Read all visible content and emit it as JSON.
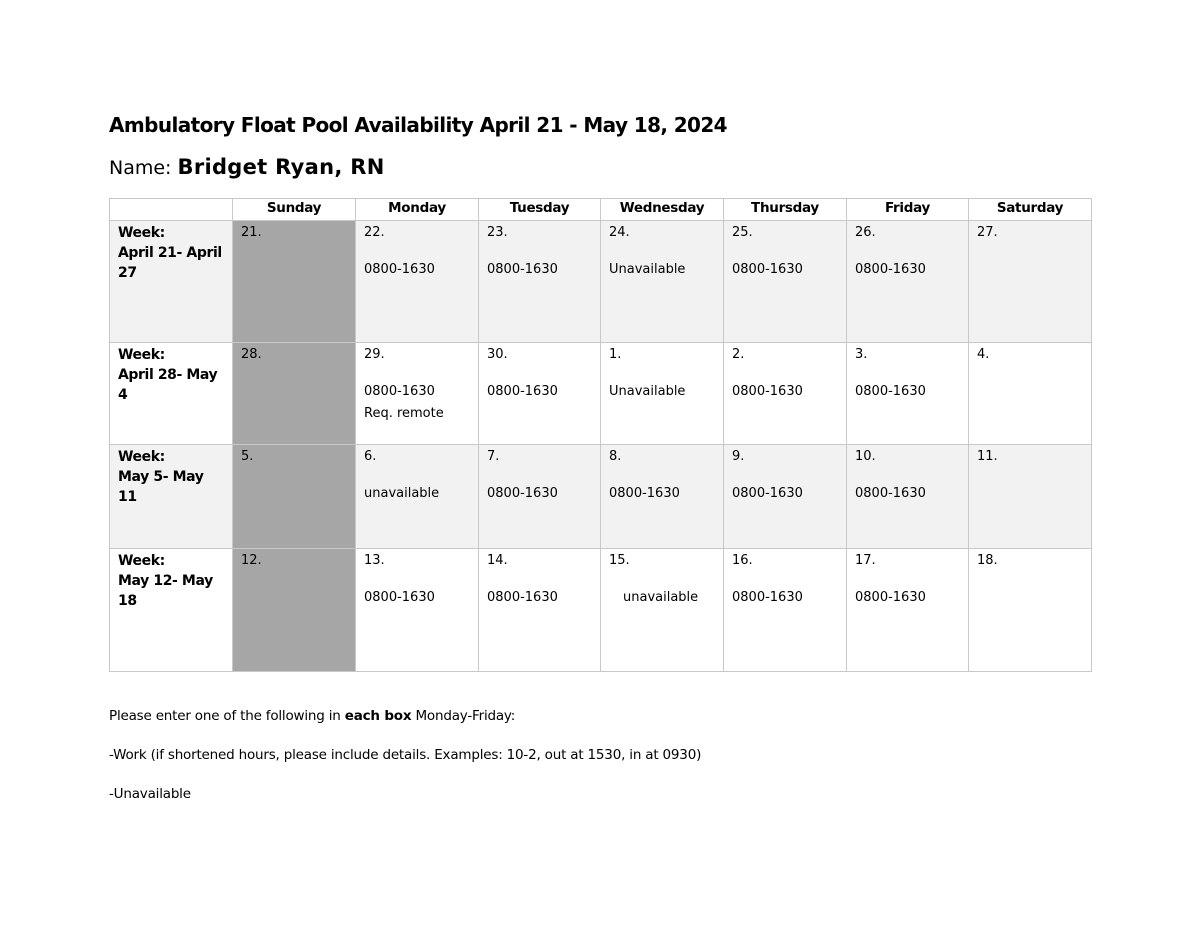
{
  "title": "Ambulatory Float Pool Availability April 21 - May 18, 2024",
  "name_label": "Name:",
  "name_value": "Bridget Ryan, RN",
  "colors": {
    "sunday_fill": "#a6a6a6",
    "shaded_row": "#f2f2f2",
    "border": "#c8c8c8"
  },
  "days": [
    "Sunday",
    "Monday",
    "Tuesday",
    "Wednesday",
    "Thursday",
    "Friday",
    "Saturday"
  ],
  "weeks": [
    {
      "label": "Week:\nApril 21- April 27",
      "cells": [
        {
          "num": "21.",
          "entry": ""
        },
        {
          "num": "22.",
          "entry": "0800-1630"
        },
        {
          "num": "23.",
          "entry": "0800-1630"
        },
        {
          "num": "24.",
          "entry": "Unavailable"
        },
        {
          "num": "25.",
          "entry": "0800-1630"
        },
        {
          "num": "26.",
          "entry": "0800-1630"
        },
        {
          "num": "27.",
          "entry": ""
        }
      ]
    },
    {
      "label": "Week:\nApril 28- May 4",
      "cells": [
        {
          "num": "28.",
          "entry": ""
        },
        {
          "num": "29.",
          "entry": "0800-1630\nReq. remote"
        },
        {
          "num": "30.",
          "entry": "0800-1630"
        },
        {
          "num": "1.",
          "entry": "Unavailable"
        },
        {
          "num": "2.",
          "entry": "0800-1630"
        },
        {
          "num": "3.",
          "entry": "0800-1630"
        },
        {
          "num": "4.",
          "entry": ""
        }
      ]
    },
    {
      "label": "Week:\nMay 5- May 11",
      "cells": [
        {
          "num": "5.",
          "entry": ""
        },
        {
          "num": "6.",
          "entry": "unavailable"
        },
        {
          "num": "7.",
          "entry": "0800-1630"
        },
        {
          "num": "8.",
          "entry": "0800-1630"
        },
        {
          "num": "9.",
          "entry": "0800-1630"
        },
        {
          "num": "10.",
          "entry": "0800-1630"
        },
        {
          "num": "11.",
          "entry": ""
        }
      ]
    },
    {
      "label": "Week:\nMay 12- May 18",
      "cells": [
        {
          "num": "12.",
          "entry": ""
        },
        {
          "num": "13.",
          "entry": "0800-1630"
        },
        {
          "num": "14.",
          "entry": "0800-1630"
        },
        {
          "num": "15.",
          "entry": "unavailable"
        },
        {
          "num": "16.",
          "entry": "0800-1630"
        },
        {
          "num": "17.",
          "entry": "0800-1630"
        },
        {
          "num": "18.",
          "entry": ""
        }
      ]
    }
  ],
  "instructions": {
    "line1_pre": "Please enter one of the following in ",
    "line1_bold": "each box",
    "line1_post": " Monday-Friday:",
    "line2": "-Work (if shortened hours, please include details. Examples: 10-2, out at 1530, in at 0930)",
    "line3": "-Unavailable"
  }
}
